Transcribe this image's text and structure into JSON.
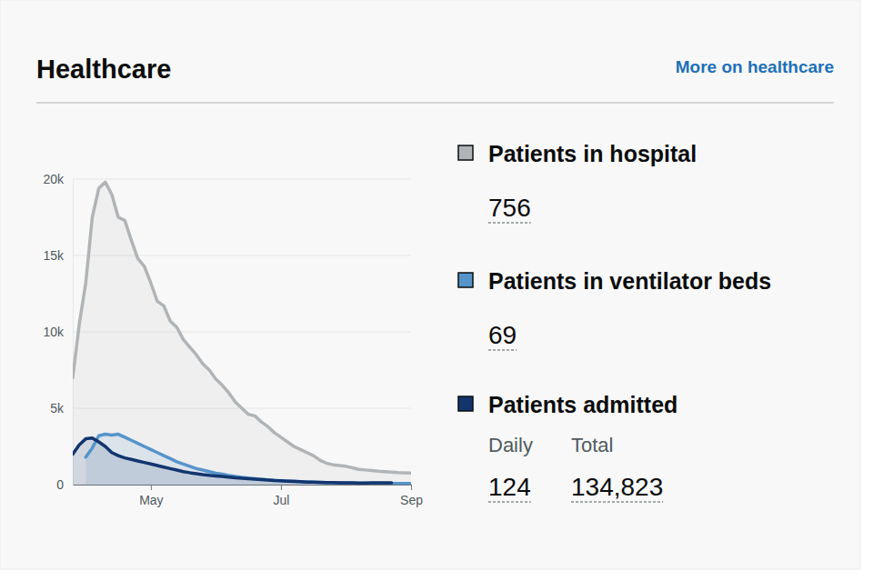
{
  "link": "More on healthcare",
  "chart_data": {
    "type": "area",
    "title": "Healthcare",
    "categories": [
      null,
      null,
      null,
      null,
      null,
      null,
      null,
      null,
      null,
      null,
      null,
      null,
      "May",
      null,
      null,
      null,
      null,
      null,
      null,
      null,
      null,
      null,
      null,
      null,
      null,
      null,
      null,
      null,
      null,
      null,
      null,
      null,
      "Jul",
      null,
      null,
      null,
      null,
      null,
      null,
      null,
      null,
      null,
      null,
      null,
      null,
      null,
      null,
      null,
      null,
      null,
      null,
      null,
      "Sep"
    ],
    "series": [
      {
        "name": "Patients in hospital",
        "color": "#b1b4b6",
        "values": [
          7000,
          10500,
          13200,
          17500,
          19400,
          19800,
          19000,
          17500,
          17300,
          16000,
          14800,
          14300,
          13200,
          12000,
          11700,
          10700,
          10300,
          9500,
          9000,
          8500,
          7900,
          7500,
          6900,
          6500,
          6000,
          5400,
          5000,
          4600,
          4500,
          4100,
          3800,
          3400,
          3100,
          2800,
          2500,
          2300,
          2100,
          1900,
          1600,
          1400,
          1300,
          1250,
          1200,
          1100,
          1000,
          960,
          920,
          880,
          850,
          820,
          790,
          770,
          756
        ]
      },
      {
        "name": "Patients in ventilator beds",
        "color": "#5694ca",
        "values": [
          null,
          null,
          1800,
          2400,
          3200,
          3300,
          3250,
          3300,
          3100,
          2900,
          2700,
          2500,
          2300,
          2100,
          1900,
          1700,
          1500,
          1350,
          1200,
          1050,
          950,
          850,
          750,
          680,
          600,
          540,
          480,
          430,
          390,
          350,
          320,
          290,
          260,
          240,
          220,
          200,
          180,
          160,
          150,
          140,
          130,
          120,
          110,
          100,
          95,
          90,
          85,
          80,
          78,
          75,
          72,
          70,
          69
        ]
      },
      {
        "name": "Patients admitted",
        "color": "#12356e",
        "values": [
          2000,
          2600,
          3000,
          3050,
          2800,
          2500,
          2100,
          1900,
          1750,
          1650,
          1550,
          1450,
          1350,
          1250,
          1150,
          1050,
          950,
          850,
          780,
          720,
          660,
          610,
          570,
          530,
          490,
          450,
          420,
          390,
          360,
          330,
          300,
          270,
          250,
          230,
          210,
          190,
          170,
          160,
          150,
          140,
          130,
          125,
          120,
          115,
          110,
          110,
          115,
          120,
          122,
          124,
          null,
          null,
          null
        ]
      }
    ],
    "ylim": [
      0,
      20000
    ],
    "yticks": [
      0,
      {
        "value": 5000,
        "label": "5k"
      },
      {
        "value": 10000,
        "label": "10k"
      },
      {
        "value": 15000,
        "label": "15k"
      },
      {
        "value": 20000,
        "label": "20k"
      }
    ],
    "grid": true
  },
  "stats": [
    [
      {
        "value": 756
      }
    ],
    [
      {
        "value": 69
      }
    ],
    [
      {
        "caption": "Daily",
        "value": 124
      },
      {
        "caption": "Total",
        "value": 134823,
        "label": "134,823"
      }
    ]
  ]
}
